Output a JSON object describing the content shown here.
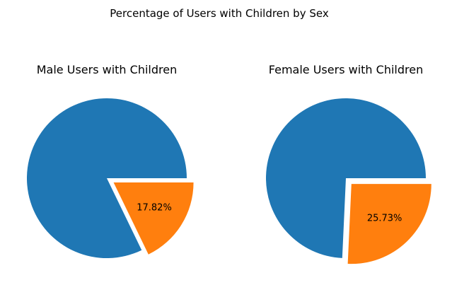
{
  "figure_title": "Percentage of Users with Children by Sex",
  "colors": {
    "primary": "#1f77b4",
    "accent": "#ff7f0e",
    "background": "#ffffff"
  },
  "chart_data": [
    {
      "type": "pie",
      "title": "Male Users with Children",
      "slices": [
        {
          "value": 82.18,
          "color": "#1f77b4",
          "exploded": false,
          "label": ""
        },
        {
          "value": 17.82,
          "color": "#ff7f0e",
          "exploded": true,
          "label": "17.82%"
        }
      ]
    },
    {
      "type": "pie",
      "title": "Female Users with Children",
      "slices": [
        {
          "value": 74.27,
          "color": "#1f77b4",
          "exploded": false,
          "label": ""
        },
        {
          "value": 25.73,
          "color": "#ff7f0e",
          "exploded": true,
          "label": "25.73%"
        }
      ]
    }
  ]
}
